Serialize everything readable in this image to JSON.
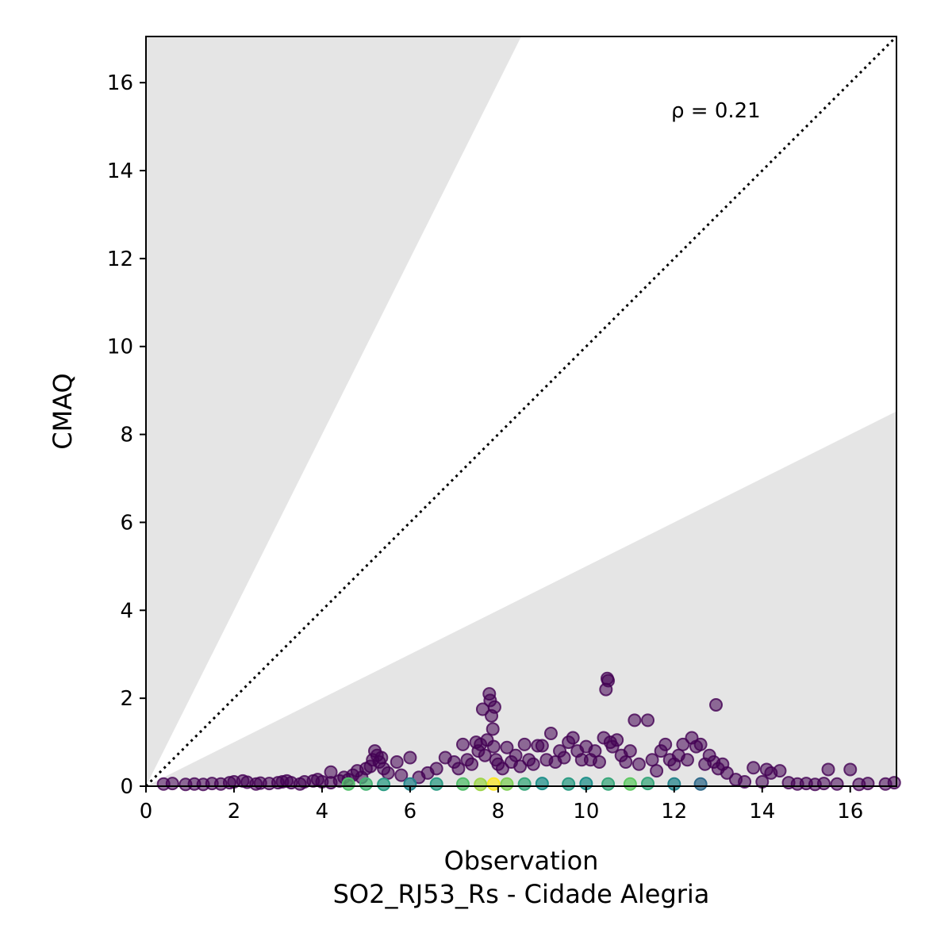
{
  "chart_data": {
    "type": "scatter",
    "xlabel": "Observation",
    "subtitle": "SO2_RJ53_Rs - Cidade Alegria",
    "ylabel": "CMAQ",
    "xlim": [
      0,
      17.05
    ],
    "ylim": [
      0,
      17.05
    ],
    "xticks": [
      0,
      2,
      4,
      6,
      8,
      10,
      12,
      14,
      16
    ],
    "yticks": [
      0,
      2,
      4,
      6,
      8,
      10,
      12,
      14,
      16
    ],
    "grid": false,
    "annotation": "ρ = 0.21",
    "reference_line": {
      "style": "dotted",
      "slope": 1,
      "color": "#000000"
    },
    "shaded_regions": {
      "color": "#e5e5e5",
      "upper_slope": 2,
      "lower_slope": 0.5
    },
    "point_color": "#440154",
    "colormap": "viridis",
    "points": [
      [
        0.4,
        0.05
      ],
      [
        0.6,
        0.06
      ],
      [
        0.9,
        0.04
      ],
      [
        1.1,
        0.05
      ],
      [
        1.3,
        0.04
      ],
      [
        1.5,
        0.06
      ],
      [
        1.7,
        0.05
      ],
      [
        1.9,
        0.08
      ],
      [
        2.0,
        0.1
      ],
      [
        2.2,
        0.12
      ],
      [
        2.3,
        0.09
      ],
      [
        2.5,
        0.05
      ],
      [
        2.6,
        0.07
      ],
      [
        2.8,
        0.06
      ],
      [
        3.0,
        0.08
      ],
      [
        3.1,
        0.1
      ],
      [
        3.2,
        0.12
      ],
      [
        3.3,
        0.08
      ],
      [
        3.5,
        0.05
      ],
      [
        3.6,
        0.1
      ],
      [
        3.8,
        0.12
      ],
      [
        3.9,
        0.15
      ],
      [
        4.0,
        0.1
      ],
      [
        4.2,
        0.08
      ],
      [
        4.2,
        0.32
      ],
      [
        4.4,
        0.12
      ],
      [
        4.5,
        0.2
      ],
      [
        4.6,
        0.15
      ],
      [
        4.7,
        0.25
      ],
      [
        4.8,
        0.35
      ],
      [
        4.9,
        0.2
      ],
      [
        5.0,
        0.4
      ],
      [
        5.1,
        0.45
      ],
      [
        5.15,
        0.6
      ],
      [
        5.2,
        0.8
      ],
      [
        5.25,
        0.7
      ],
      [
        5.3,
        0.55
      ],
      [
        5.35,
        0.65
      ],
      [
        5.4,
        0.4
      ],
      [
        5.5,
        0.3
      ],
      [
        5.7,
        0.55
      ],
      [
        5.8,
        0.25
      ],
      [
        6.0,
        0.65
      ],
      [
        6.2,
        0.2
      ],
      [
        6.4,
        0.3
      ],
      [
        6.6,
        0.4
      ],
      [
        6.8,
        0.65
      ],
      [
        7.0,
        0.55
      ],
      [
        7.1,
        0.4
      ],
      [
        7.2,
        0.95
      ],
      [
        7.3,
        0.6
      ],
      [
        7.4,
        0.5
      ],
      [
        7.5,
        1.0
      ],
      [
        7.55,
        0.8
      ],
      [
        7.6,
        0.95
      ],
      [
        7.65,
        1.75
      ],
      [
        7.7,
        0.7
      ],
      [
        7.75,
        1.05
      ],
      [
        7.8,
        2.1
      ],
      [
        7.82,
        1.95
      ],
      [
        7.85,
        1.6
      ],
      [
        7.88,
        1.3
      ],
      [
        7.9,
        0.9
      ],
      [
        7.92,
        1.8
      ],
      [
        7.95,
        0.6
      ],
      [
        8.0,
        0.5
      ],
      [
        8.1,
        0.4
      ],
      [
        8.2,
        0.88
      ],
      [
        8.3,
        0.55
      ],
      [
        8.4,
        0.7
      ],
      [
        8.5,
        0.45
      ],
      [
        8.6,
        0.95
      ],
      [
        8.7,
        0.6
      ],
      [
        8.8,
        0.5
      ],
      [
        8.9,
        0.92
      ],
      [
        9.0,
        0.92
      ],
      [
        9.1,
        0.6
      ],
      [
        9.2,
        1.2
      ],
      [
        9.3,
        0.55
      ],
      [
        9.4,
        0.8
      ],
      [
        9.5,
        0.65
      ],
      [
        9.6,
        1.0
      ],
      [
        9.7,
        1.1
      ],
      [
        9.8,
        0.8
      ],
      [
        9.9,
        0.6
      ],
      [
        10.0,
        0.9
      ],
      [
        10.1,
        0.6
      ],
      [
        10.2,
        0.8
      ],
      [
        10.3,
        0.55
      ],
      [
        10.4,
        1.1
      ],
      [
        10.45,
        2.2
      ],
      [
        10.48,
        2.45
      ],
      [
        10.5,
        2.4
      ],
      [
        10.55,
        1.0
      ],
      [
        10.6,
        0.9
      ],
      [
        10.7,
        1.05
      ],
      [
        10.8,
        0.7
      ],
      [
        10.9,
        0.55
      ],
      [
        11.0,
        0.8
      ],
      [
        11.1,
        1.5
      ],
      [
        11.2,
        0.5
      ],
      [
        11.4,
        1.5
      ],
      [
        11.5,
        0.6
      ],
      [
        11.6,
        0.35
      ],
      [
        11.7,
        0.8
      ],
      [
        11.8,
        0.95
      ],
      [
        11.9,
        0.6
      ],
      [
        12.0,
        0.5
      ],
      [
        12.1,
        0.7
      ],
      [
        12.2,
        0.95
      ],
      [
        12.3,
        0.6
      ],
      [
        12.4,
        1.1
      ],
      [
        12.5,
        0.9
      ],
      [
        12.6,
        0.95
      ],
      [
        12.7,
        0.5
      ],
      [
        12.8,
        0.7
      ],
      [
        12.9,
        0.55
      ],
      [
        12.95,
        1.85
      ],
      [
        13.0,
        0.4
      ],
      [
        13.1,
        0.5
      ],
      [
        13.2,
        0.3
      ],
      [
        13.4,
        0.15
      ],
      [
        13.6,
        0.1
      ],
      [
        13.8,
        0.42
      ],
      [
        14.0,
        0.1
      ],
      [
        14.1,
        0.38
      ],
      [
        14.2,
        0.3
      ],
      [
        14.4,
        0.35
      ],
      [
        14.6,
        0.08
      ],
      [
        14.8,
        0.05
      ],
      [
        15.0,
        0.06
      ],
      [
        15.2,
        0.04
      ],
      [
        15.4,
        0.06
      ],
      [
        15.5,
        0.38
      ],
      [
        15.7,
        0.05
      ],
      [
        16.0,
        0.38
      ],
      [
        16.2,
        0.04
      ],
      [
        16.4,
        0.06
      ],
      [
        16.8,
        0.05
      ],
      [
        17.0,
        0.08
      ]
    ],
    "dense_points": [
      [
        4.6,
        0.05,
        0.7
      ],
      [
        5.0,
        0.05,
        0.65
      ],
      [
        5.4,
        0.04,
        0.55
      ],
      [
        6.0,
        0.05,
        0.45
      ],
      [
        6.6,
        0.05,
        0.55
      ],
      [
        7.2,
        0.05,
        0.7
      ],
      [
        7.6,
        0.04,
        0.85
      ],
      [
        7.9,
        0.05,
        1.0
      ],
      [
        8.2,
        0.05,
        0.8
      ],
      [
        8.6,
        0.05,
        0.6
      ],
      [
        9.0,
        0.06,
        0.5
      ],
      [
        9.6,
        0.05,
        0.55
      ],
      [
        10.0,
        0.06,
        0.5
      ],
      [
        10.5,
        0.05,
        0.6
      ],
      [
        11.0,
        0.05,
        0.75
      ],
      [
        11.4,
        0.06,
        0.6
      ],
      [
        12.0,
        0.05,
        0.45
      ],
      [
        12.6,
        0.05,
        0.35
      ]
    ]
  }
}
